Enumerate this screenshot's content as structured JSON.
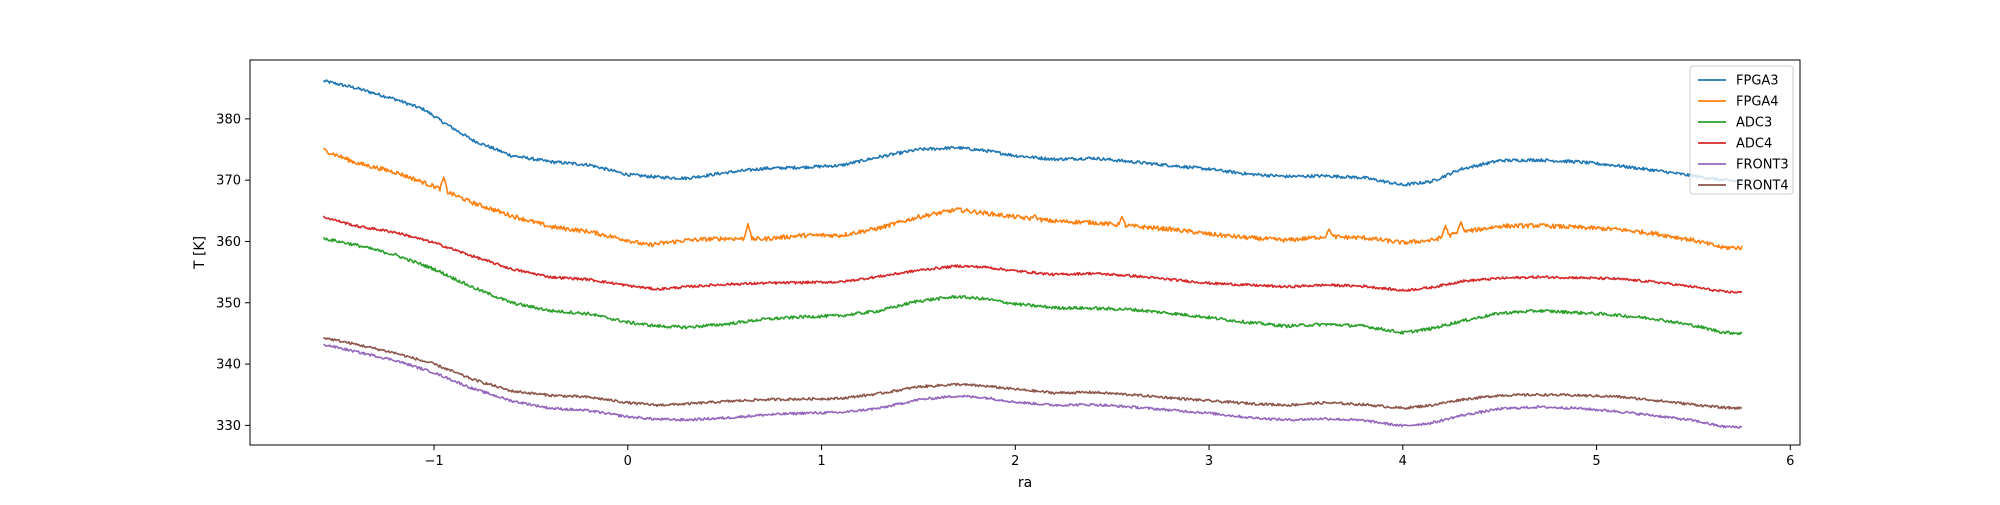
{
  "chart_data": {
    "type": "line",
    "title": "",
    "xlabel": "ra",
    "ylabel": "T [K]",
    "xlim": [
      -1.95,
      6.05
    ],
    "ylim": [
      326.8,
      389.6
    ],
    "xticks": [
      -1,
      0,
      1,
      2,
      3,
      4,
      5,
      6
    ],
    "xtick_labels": [
      "−1",
      "0",
      "1",
      "2",
      "3",
      "4",
      "5",
      "6"
    ],
    "yticks": [
      330,
      340,
      350,
      360,
      370,
      380
    ],
    "ytick_labels": [
      "330",
      "340",
      "350",
      "360",
      "370",
      "380"
    ],
    "grid": false,
    "legend_position": "top-right",
    "series": [
      {
        "name": "FPGA3",
        "color": "#1f77b4",
        "noise": 0.25,
        "points": [
          [
            -1.57,
            386.2
          ],
          [
            -1.4,
            385.0
          ],
          [
            -1.2,
            383.2
          ],
          [
            -1.05,
            381.5
          ],
          [
            -0.95,
            379.4
          ],
          [
            -0.8,
            376.5
          ],
          [
            -0.6,
            374.0
          ],
          [
            -0.4,
            373.0
          ],
          [
            -0.2,
            372.5
          ],
          [
            0.0,
            370.9
          ],
          [
            0.15,
            370.5
          ],
          [
            0.3,
            370.3
          ],
          [
            0.5,
            371.2
          ],
          [
            0.7,
            371.9
          ],
          [
            0.9,
            372.1
          ],
          [
            1.1,
            372.4
          ],
          [
            1.3,
            373.8
          ],
          [
            1.5,
            375.0
          ],
          [
            1.7,
            375.3
          ],
          [
            1.85,
            374.8
          ],
          [
            2.0,
            374.0
          ],
          [
            2.2,
            373.4
          ],
          [
            2.4,
            373.6
          ],
          [
            2.6,
            373.0
          ],
          [
            2.8,
            372.4
          ],
          [
            3.0,
            371.8
          ],
          [
            3.2,
            371.0
          ],
          [
            3.4,
            370.6
          ],
          [
            3.6,
            370.7
          ],
          [
            3.8,
            370.4
          ],
          [
            4.0,
            369.2
          ],
          [
            4.15,
            369.8
          ],
          [
            4.3,
            371.8
          ],
          [
            4.5,
            373.2
          ],
          [
            4.7,
            373.3
          ],
          [
            4.9,
            373.0
          ],
          [
            5.1,
            372.4
          ],
          [
            5.3,
            371.6
          ],
          [
            5.5,
            370.7
          ],
          [
            5.65,
            370.0
          ],
          [
            5.75,
            369.8
          ]
        ],
        "spikes": []
      },
      {
        "name": "FPGA4",
        "color": "#ff7f0e",
        "noise": 0.35,
        "points": [
          [
            -1.57,
            374.9
          ],
          [
            -1.4,
            372.8
          ],
          [
            -1.2,
            371.3
          ],
          [
            -1.0,
            369.0
          ],
          [
            -0.8,
            366.3
          ],
          [
            -0.6,
            364.2
          ],
          [
            -0.4,
            362.4
          ],
          [
            -0.2,
            361.6
          ],
          [
            0.0,
            360.2
          ],
          [
            0.1,
            359.4
          ],
          [
            0.3,
            360.2
          ],
          [
            0.5,
            360.5
          ],
          [
            0.7,
            360.4
          ],
          [
            0.9,
            361.0
          ],
          [
            1.1,
            361.0
          ],
          [
            1.3,
            362.2
          ],
          [
            1.5,
            364.0
          ],
          [
            1.7,
            365.2
          ],
          [
            1.85,
            364.6
          ],
          [
            2.0,
            364.0
          ],
          [
            2.2,
            363.3
          ],
          [
            2.4,
            363.1
          ],
          [
            2.6,
            362.5
          ],
          [
            2.8,
            362.0
          ],
          [
            3.0,
            361.2
          ],
          [
            3.2,
            360.6
          ],
          [
            3.4,
            360.2
          ],
          [
            3.6,
            360.8
          ],
          [
            3.8,
            360.6
          ],
          [
            4.0,
            359.8
          ],
          [
            4.15,
            360.2
          ],
          [
            4.3,
            361.5
          ],
          [
            4.5,
            362.5
          ],
          [
            4.7,
            362.6
          ],
          [
            4.9,
            362.3
          ],
          [
            5.1,
            362.0
          ],
          [
            5.3,
            361.3
          ],
          [
            5.5,
            360.2
          ],
          [
            5.65,
            359.0
          ],
          [
            5.75,
            359.0
          ]
        ],
        "spikes": [
          [
            -0.95,
            370.5
          ],
          [
            0.62,
            362.9
          ],
          [
            2.1,
            364.3
          ],
          [
            2.55,
            364.0
          ],
          [
            3.62,
            362.0
          ],
          [
            4.22,
            362.6
          ],
          [
            4.3,
            363.2
          ]
        ]
      },
      {
        "name": "ADC3",
        "color": "#2ca02c",
        "noise": 0.25,
        "points": [
          [
            -1.57,
            360.5
          ],
          [
            -1.4,
            359.4
          ],
          [
            -1.2,
            357.8
          ],
          [
            -1.0,
            355.5
          ],
          [
            -0.8,
            352.5
          ],
          [
            -0.6,
            350.0
          ],
          [
            -0.4,
            348.7
          ],
          [
            -0.2,
            348.2
          ],
          [
            0.0,
            346.8
          ],
          [
            0.15,
            346.2
          ],
          [
            0.3,
            346.0
          ],
          [
            0.5,
            346.5
          ],
          [
            0.7,
            347.3
          ],
          [
            0.9,
            347.7
          ],
          [
            1.1,
            347.9
          ],
          [
            1.3,
            348.7
          ],
          [
            1.5,
            350.3
          ],
          [
            1.7,
            351.0
          ],
          [
            1.85,
            350.6
          ],
          [
            2.0,
            349.8
          ],
          [
            2.2,
            349.2
          ],
          [
            2.4,
            349.1
          ],
          [
            2.6,
            348.9
          ],
          [
            2.8,
            348.3
          ],
          [
            3.0,
            347.6
          ],
          [
            3.2,
            346.8
          ],
          [
            3.4,
            346.2
          ],
          [
            3.6,
            346.5
          ],
          [
            3.8,
            346.2
          ],
          [
            4.0,
            345.1
          ],
          [
            4.15,
            345.8
          ],
          [
            4.3,
            347.0
          ],
          [
            4.5,
            348.3
          ],
          [
            4.7,
            348.7
          ],
          [
            4.9,
            348.4
          ],
          [
            5.1,
            348.0
          ],
          [
            5.3,
            347.4
          ],
          [
            5.5,
            346.3
          ],
          [
            5.65,
            345.2
          ],
          [
            5.75,
            345.0
          ]
        ],
        "spikes": []
      },
      {
        "name": "ADC4",
        "color": "#d62728",
        "noise": 0.2,
        "points": [
          [
            -1.57,
            364.0
          ],
          [
            -1.4,
            362.5
          ],
          [
            -1.2,
            361.5
          ],
          [
            -1.0,
            359.8
          ],
          [
            -0.8,
            357.6
          ],
          [
            -0.6,
            355.5
          ],
          [
            -0.4,
            354.2
          ],
          [
            -0.2,
            353.8
          ],
          [
            0.0,
            352.8
          ],
          [
            0.15,
            352.2
          ],
          [
            0.3,
            352.6
          ],
          [
            0.5,
            353.0
          ],
          [
            0.7,
            353.2
          ],
          [
            0.9,
            353.3
          ],
          [
            1.1,
            353.4
          ],
          [
            1.3,
            354.3
          ],
          [
            1.5,
            355.3
          ],
          [
            1.7,
            356.0
          ],
          [
            1.85,
            355.8
          ],
          [
            2.0,
            355.2
          ],
          [
            2.2,
            354.6
          ],
          [
            2.4,
            354.8
          ],
          [
            2.6,
            354.4
          ],
          [
            2.8,
            353.8
          ],
          [
            3.0,
            353.2
          ],
          [
            3.2,
            352.9
          ],
          [
            3.4,
            352.6
          ],
          [
            3.6,
            352.9
          ],
          [
            3.8,
            352.7
          ],
          [
            4.0,
            352.0
          ],
          [
            4.15,
            352.5
          ],
          [
            4.3,
            353.5
          ],
          [
            4.5,
            354.0
          ],
          [
            4.7,
            354.2
          ],
          [
            4.9,
            354.1
          ],
          [
            5.1,
            353.9
          ],
          [
            5.3,
            353.4
          ],
          [
            5.5,
            352.6
          ],
          [
            5.65,
            351.8
          ],
          [
            5.75,
            351.7
          ]
        ],
        "spikes": []
      },
      {
        "name": "FRONT3",
        "color": "#9467bd",
        "noise": 0.2,
        "points": [
          [
            -1.57,
            343.2
          ],
          [
            -1.4,
            342.0
          ],
          [
            -1.2,
            340.6
          ],
          [
            -1.0,
            338.6
          ],
          [
            -0.8,
            336.0
          ],
          [
            -0.6,
            334.0
          ],
          [
            -0.4,
            332.8
          ],
          [
            -0.2,
            332.4
          ],
          [
            0.0,
            331.4
          ],
          [
            0.15,
            331.0
          ],
          [
            0.3,
            330.9
          ],
          [
            0.5,
            331.2
          ],
          [
            0.7,
            331.7
          ],
          [
            0.9,
            332.0
          ],
          [
            1.1,
            332.1
          ],
          [
            1.3,
            332.8
          ],
          [
            1.5,
            334.2
          ],
          [
            1.7,
            334.8
          ],
          [
            1.85,
            334.5
          ],
          [
            2.0,
            333.8
          ],
          [
            2.2,
            333.3
          ],
          [
            2.4,
            333.4
          ],
          [
            2.6,
            333.0
          ],
          [
            2.8,
            332.5
          ],
          [
            3.0,
            332.0
          ],
          [
            3.2,
            331.3
          ],
          [
            3.4,
            330.9
          ],
          [
            3.6,
            331.1
          ],
          [
            3.8,
            330.8
          ],
          [
            4.0,
            329.9
          ],
          [
            4.15,
            330.4
          ],
          [
            4.3,
            331.6
          ],
          [
            4.5,
            332.7
          ],
          [
            4.7,
            333.0
          ],
          [
            4.9,
            332.8
          ],
          [
            5.1,
            332.3
          ],
          [
            5.3,
            331.6
          ],
          [
            5.5,
            330.8
          ],
          [
            5.65,
            329.8
          ],
          [
            5.75,
            329.7
          ]
        ],
        "spikes": []
      },
      {
        "name": "FRONT4",
        "color": "#8c564b",
        "noise": 0.2,
        "points": [
          [
            -1.57,
            344.3
          ],
          [
            -1.4,
            343.2
          ],
          [
            -1.2,
            341.8
          ],
          [
            -1.0,
            340.0
          ],
          [
            -0.8,
            337.5
          ],
          [
            -0.6,
            335.6
          ],
          [
            -0.4,
            334.9
          ],
          [
            -0.2,
            334.6
          ],
          [
            0.0,
            333.7
          ],
          [
            0.15,
            333.3
          ],
          [
            0.3,
            333.5
          ],
          [
            0.5,
            333.9
          ],
          [
            0.7,
            334.2
          ],
          [
            0.9,
            334.3
          ],
          [
            1.1,
            334.4
          ],
          [
            1.3,
            335.2
          ],
          [
            1.5,
            336.3
          ],
          [
            1.7,
            336.7
          ],
          [
            1.85,
            336.4
          ],
          [
            2.0,
            335.9
          ],
          [
            2.2,
            335.3
          ],
          [
            2.4,
            335.4
          ],
          [
            2.6,
            335.0
          ],
          [
            2.8,
            334.5
          ],
          [
            3.0,
            334.0
          ],
          [
            3.2,
            333.6
          ],
          [
            3.4,
            333.3
          ],
          [
            3.6,
            333.7
          ],
          [
            3.8,
            333.4
          ],
          [
            4.0,
            332.8
          ],
          [
            4.15,
            333.3
          ],
          [
            4.3,
            334.2
          ],
          [
            4.5,
            334.9
          ],
          [
            4.7,
            335.0
          ],
          [
            4.9,
            334.9
          ],
          [
            5.1,
            334.7
          ],
          [
            5.3,
            334.1
          ],
          [
            5.5,
            333.4
          ],
          [
            5.65,
            332.9
          ],
          [
            5.75,
            332.8
          ]
        ],
        "spikes": []
      }
    ]
  }
}
